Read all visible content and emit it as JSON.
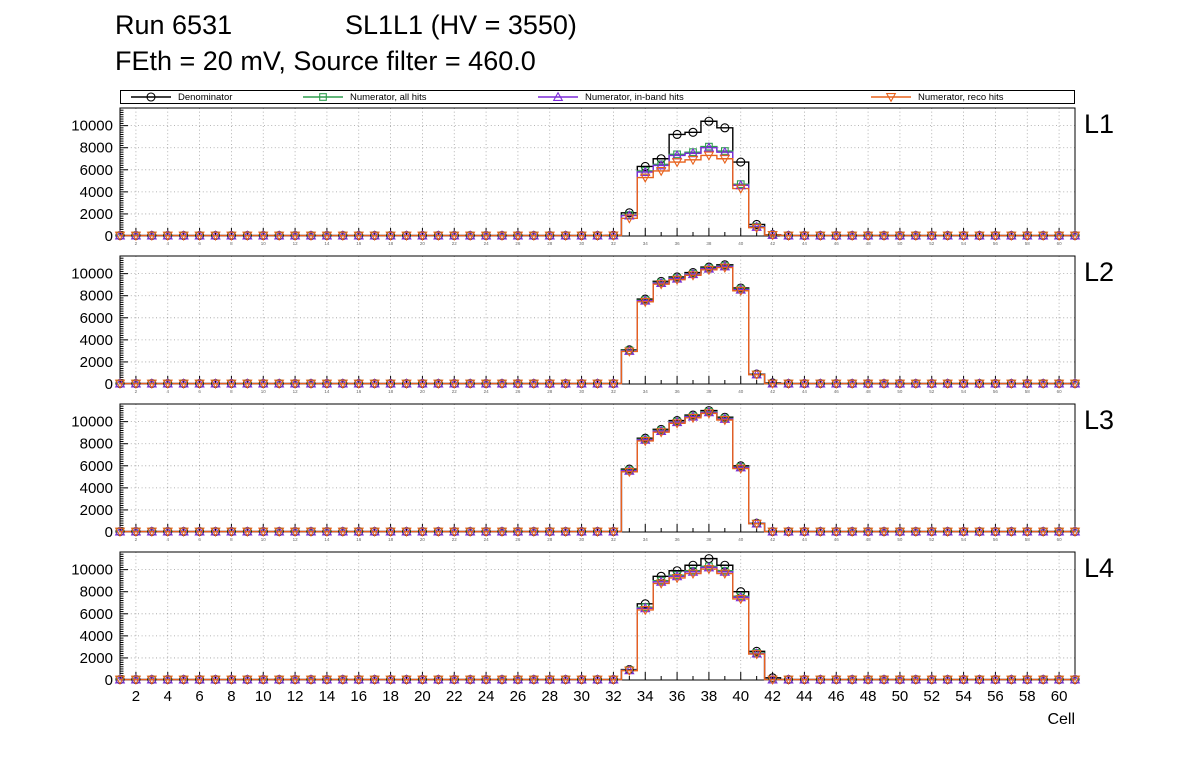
{
  "header": {
    "run_title": "Run 6531",
    "chamber_title": "SL1L1 (HV = 3550)",
    "subtitle": "FEth = 20 mV, Source filter = 460.0"
  },
  "chart_data": {
    "type": "line",
    "subtype": "step-histogram",
    "title": "Run 6531  SL1L1 (HV = 3550)  FEth = 20 mV, Source filter = 460.0",
    "xlabel": "Cell",
    "ylabel": "",
    "grid": true,
    "legend_position": "top",
    "x_range": [
      1,
      61
    ],
    "x_major_ticks": [
      2,
      4,
      6,
      8,
      10,
      12,
      14,
      16,
      18,
      20,
      22,
      24,
      26,
      28,
      30,
      32,
      34,
      36,
      38,
      40,
      42,
      44,
      46,
      48,
      50,
      52,
      54,
      56,
      58,
      60
    ],
    "y_range": [
      0,
      11600
    ],
    "y_major_ticks": [
      0,
      2000,
      4000,
      6000,
      8000,
      10000
    ],
    "baseline_value": 40,
    "series_defs": [
      {
        "name": "Denominator",
        "color": "#000000",
        "marker": "circle"
      },
      {
        "name": "Numerator, all hits",
        "color": "#2f9e4f",
        "marker": "square"
      },
      {
        "name": "Numerator, in-band hits",
        "color": "#7d2bd9",
        "marker": "triangle-up"
      },
      {
        "name": "Numerator, reco hits",
        "color": "#e8621c",
        "marker": "triangle-down"
      }
    ],
    "legend_entry_offsets": [
      8,
      180,
      415,
      748
    ],
    "panels": [
      {
        "label": "L1",
        "series": [
          {
            "name": "Denominator",
            "points": {
              "32": 60,
              "33": 2100,
              "34": 6300,
              "35": 7000,
              "36": 9200,
              "37": 9400,
              "38": 10400,
              "39": 9800,
              "40": 6700,
              "41": 1050,
              "42": 120
            }
          },
          {
            "name": "Numerator, all hits",
            "points": {
              "32": 55,
              "33": 1900,
              "34": 5900,
              "35": 6500,
              "36": 7400,
              "37": 7600,
              "38": 8100,
              "39": 7700,
              "40": 4700,
              "41": 850,
              "42": 100
            }
          },
          {
            "name": "Numerator, in-band hits",
            "points": {
              "32": 55,
              "33": 1850,
              "34": 5800,
              "35": 6400,
              "36": 7300,
              "37": 7500,
              "38": 8000,
              "39": 7600,
              "40": 4600,
              "41": 820,
              "42": 95
            }
          },
          {
            "name": "Numerator, reco hits",
            "points": {
              "32": 50,
              "33": 1600,
              "34": 5300,
              "35": 5900,
              "36": 6700,
              "37": 6900,
              "38": 7300,
              "39": 7000,
              "40": 4300,
              "41": 750,
              "42": 90
            }
          }
        ]
      },
      {
        "label": "L2",
        "series": [
          {
            "name": "Denominator",
            "points": {
              "33": 3100,
              "34": 7700,
              "35": 9300,
              "36": 9700,
              "37": 10100,
              "38": 10600,
              "39": 10800,
              "40": 8700,
              "41": 900,
              "42": 100
            }
          },
          {
            "name": "Numerator, all hits",
            "points": {
              "33": 3050,
              "34": 7600,
              "35": 9200,
              "36": 9600,
              "37": 10000,
              "38": 10500,
              "39": 10700,
              "40": 8600,
              "41": 880
            }
          },
          {
            "name": "Numerator, in-band hits",
            "points": {
              "33": 3000,
              "34": 7550,
              "35": 9150,
              "36": 9550,
              "37": 9950,
              "38": 10450,
              "39": 10650,
              "40": 8550,
              "41": 870
            }
          },
          {
            "name": "Numerator, reco hits",
            "points": {
              "33": 2950,
              "34": 7450,
              "35": 9050,
              "36": 9450,
              "37": 9850,
              "38": 10350,
              "39": 10550,
              "40": 8450,
              "41": 850
            }
          }
        ]
      },
      {
        "label": "L3",
        "series": [
          {
            "name": "Denominator",
            "points": {
              "33": 5700,
              "34": 8500,
              "35": 9300,
              "36": 10100,
              "37": 10600,
              "38": 11000,
              "39": 10400,
              "40": 6000,
              "41": 800
            }
          },
          {
            "name": "Numerator, all hits",
            "points": {
              "33": 5600,
              "34": 8400,
              "35": 9200,
              "36": 10000,
              "37": 10500,
              "38": 10900,
              "39": 10300,
              "40": 5900,
              "41": 780
            }
          },
          {
            "name": "Numerator, in-band hits",
            "points": {
              "33": 5550,
              "34": 8350,
              "35": 9150,
              "36": 9950,
              "37": 10450,
              "38": 10850,
              "39": 10250,
              "40": 5850,
              "41": 770
            }
          },
          {
            "name": "Numerator, reco hits",
            "points": {
              "33": 5450,
              "34": 8250,
              "35": 9050,
              "36": 9850,
              "37": 10350,
              "38": 10750,
              "39": 10150,
              "40": 5750,
              "41": 750
            }
          }
        ]
      },
      {
        "label": "L4",
        "series": [
          {
            "name": "Denominator",
            "points": {
              "33": 950,
              "34": 6900,
              "35": 9400,
              "36": 9900,
              "37": 10400,
              "38": 11000,
              "39": 10400,
              "40": 8000,
              "41": 2600,
              "42": 200
            }
          },
          {
            "name": "Numerator, all hits",
            "points": {
              "33": 900,
              "34": 6600,
              "35": 9000,
              "36": 9500,
              "37": 9900,
              "38": 10300,
              "39": 9900,
              "40": 7600,
              "41": 2450
            }
          },
          {
            "name": "Numerator, in-band hits",
            "points": {
              "33": 880,
              "34": 6500,
              "35": 8900,
              "36": 9400,
              "37": 9800,
              "38": 10200,
              "39": 9800,
              "40": 7500,
              "41": 2400
            }
          },
          {
            "name": "Numerator, reco hits",
            "points": {
              "33": 850,
              "34": 6350,
              "35": 8750,
              "36": 9250,
              "37": 9650,
              "38": 10050,
              "39": 9650,
              "40": 7350,
              "41": 2350
            }
          }
        ]
      }
    ]
  }
}
